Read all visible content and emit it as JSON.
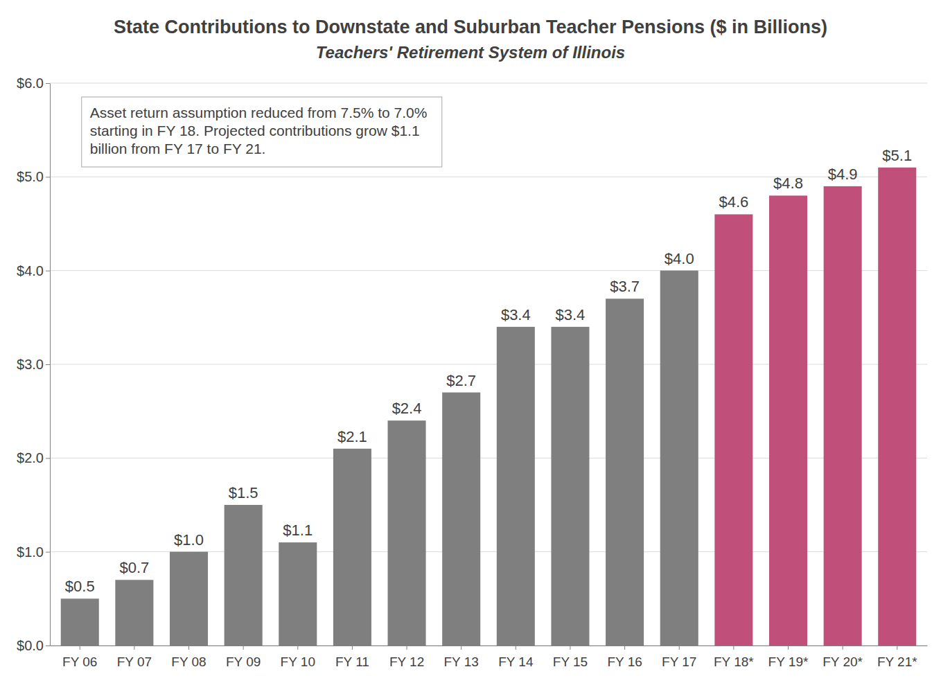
{
  "chart_data": {
    "type": "bar",
    "title": "State Contributions to Downstate and Suburban Teacher Pensions ($ in Billions)",
    "subtitle": "Teachers' Retirement System of Illinois",
    "annotations": [
      "Asset return assumption reduced from 7.5% to 7.0% starting in FY 18. Projected contributions grow $1.1 billion from FY 17 to FY 21."
    ],
    "categories": [
      "FY 06",
      "FY 07",
      "FY 08",
      "FY 09",
      "FY 10",
      "FY 11",
      "FY 12",
      "FY 13",
      "FY 14",
      "FY 15",
      "FY 16",
      "FY 17",
      "FY 18*",
      "FY 19*",
      "FY 20*",
      "FY 21*"
    ],
    "values": [
      0.5,
      0.7,
      1.0,
      1.5,
      1.1,
      2.1,
      2.4,
      2.7,
      3.4,
      3.4,
      3.7,
      4.0,
      4.6,
      4.8,
      4.9,
      5.1
    ],
    "value_labels": [
      "$0.5",
      "$0.7",
      "$1.0",
      "$1.5",
      "$1.1",
      "$2.1",
      "$2.4",
      "$2.7",
      "$3.4",
      "$3.4",
      "$3.7",
      "$4.0",
      "$4.6",
      "$4.8",
      "$4.9",
      "$5.1"
    ],
    "colors": [
      "#7f7f7f",
      "#7f7f7f",
      "#7f7f7f",
      "#7f7f7f",
      "#7f7f7f",
      "#7f7f7f",
      "#7f7f7f",
      "#7f7f7f",
      "#7f7f7f",
      "#7f7f7f",
      "#7f7f7f",
      "#7f7f7f",
      "#c0507a",
      "#c0507a",
      "#c0507a",
      "#c0507a"
    ],
    "ylim": [
      0,
      6
    ],
    "yticks": [
      {
        "value": 0,
        "label": "$0.0"
      },
      {
        "value": 1,
        "label": "$1.0"
      },
      {
        "value": 2,
        "label": "$2.0"
      },
      {
        "value": 3,
        "label": "$3.0"
      },
      {
        "value": 4,
        "label": "$4.0"
      },
      {
        "value": 5,
        "label": "$5.0"
      },
      {
        "value": 6,
        "label": "$6.0"
      }
    ],
    "grid": true,
    "data_labels": true
  }
}
